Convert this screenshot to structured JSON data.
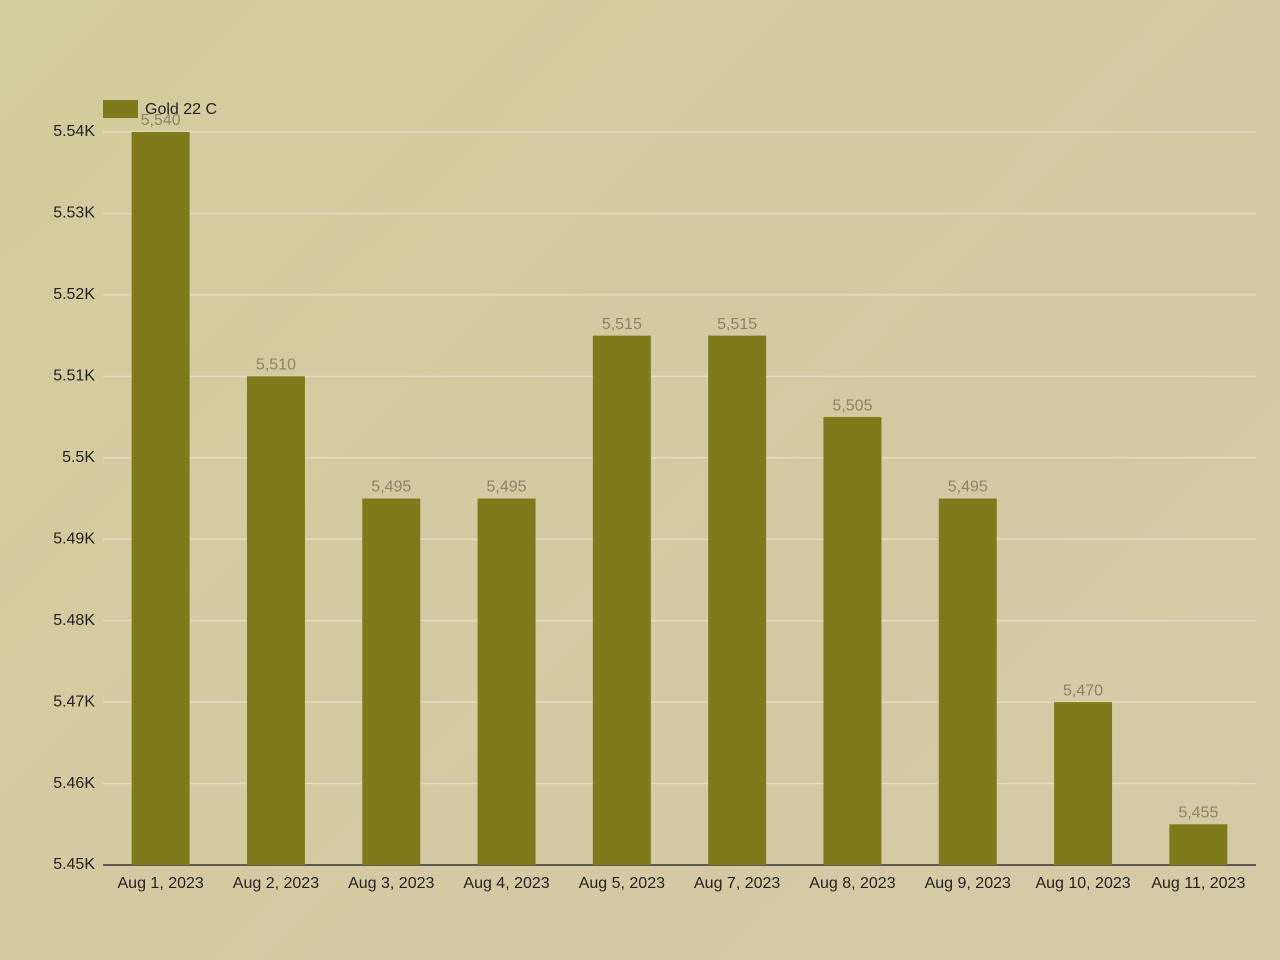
{
  "chart_data": {
    "type": "bar",
    "categories": [
      "Aug 1, 2023",
      "Aug 2, 2023",
      "Aug 3, 2023",
      "Aug 4, 2023",
      "Aug 5, 2023",
      "Aug 7, 2023",
      "Aug 8, 2023",
      "Aug 9, 2023",
      "Aug 10, 2023",
      "Aug 11, 2023"
    ],
    "series": [
      {
        "name": "Gold 22 C",
        "color": "#817a1c",
        "values": [
          5540,
          5510,
          5495,
          5495,
          5515,
          5515,
          5505,
          5495,
          5470,
          5455
        ],
        "value_labels": [
          "5,540",
          "5,510",
          "5,495",
          "5,495",
          "5,515",
          "5,515",
          "5,505",
          "5,495",
          "5,470",
          "5,455"
        ]
      }
    ],
    "ylim": [
      5450,
      5540
    ],
    "yticks": [
      {
        "value": 5450,
        "label": "5.45K"
      },
      {
        "value": 5460,
        "label": "5.46K"
      },
      {
        "value": 5470,
        "label": "5.47K"
      },
      {
        "value": 5480,
        "label": "5.48K"
      },
      {
        "value": 5490,
        "label": "5.49K"
      },
      {
        "value": 5500,
        "label": "5.5K"
      },
      {
        "value": 5510,
        "label": "5.51K"
      },
      {
        "value": 5520,
        "label": "5.52K"
      },
      {
        "value": 5530,
        "label": "5.53K"
      },
      {
        "value": 5540,
        "label": "5.54K"
      }
    ],
    "grid": true,
    "legend": "top-left"
  }
}
